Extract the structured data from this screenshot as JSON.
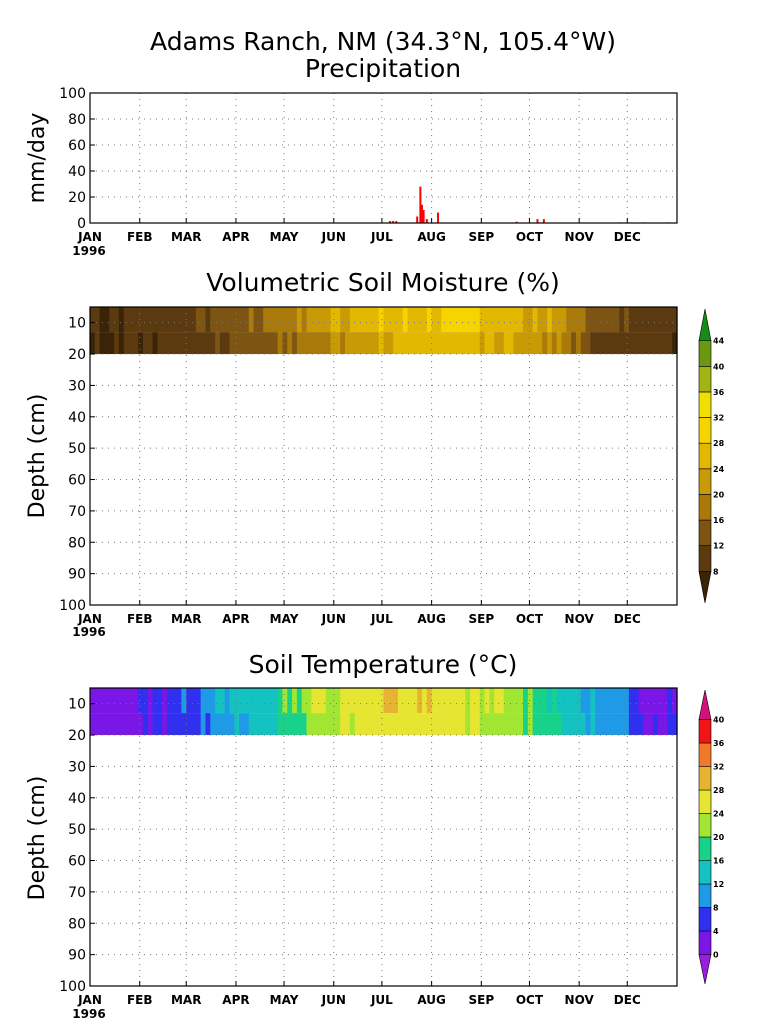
{
  "chart_data": [
    {
      "type": "bar",
      "title": "Adams Ranch, NM (34.3°N, 105.4°W)",
      "subtitle": "Precipitation",
      "xlabel": "",
      "ylabel": "mm/day",
      "year": "1996",
      "x_ticks": [
        "JAN",
        "FEB",
        "MAR",
        "APR",
        "MAY",
        "JUN",
        "JUL",
        "AUG",
        "SEP",
        "OCT",
        "NOV",
        "DEC"
      ],
      "y_ticks": [
        "0",
        "20",
        "40",
        "60",
        "80",
        "100"
      ],
      "ylim": [
        0,
        100
      ],
      "xlim_days": [
        0,
        366
      ],
      "grid": true,
      "color": "#ff0000",
      "x": [
        187,
        189,
        191,
        204,
        206,
        207,
        208,
        210,
        217,
        266,
        279,
        283,
        330,
        346,
        360
      ],
      "values": [
        1.5,
        1.5,
        1.5,
        5,
        28,
        14,
        10,
        3,
        8,
        1,
        3,
        3,
        0.5,
        0.5,
        0.5
      ]
    },
    {
      "type": "heatmap",
      "title": "Volumetric Soil Moisture (%)",
      "xlabel": "",
      "ylabel": "Depth (cm)",
      "year": "1996",
      "x_ticks": [
        "JAN",
        "FEB",
        "MAR",
        "APR",
        "MAY",
        "JUN",
        "JUL",
        "AUG",
        "SEP",
        "OCT",
        "NOV",
        "DEC"
      ],
      "y_ticks": [
        "10",
        "20",
        "30",
        "40",
        "50",
        "60",
        "70",
        "80",
        "90",
        "100"
      ],
      "ylim": [
        100,
        5
      ],
      "depth_range": [
        5,
        20
      ],
      "grid": true,
      "colorbar_labels": [
        "8",
        "12",
        "16",
        "20",
        "24",
        "28",
        "32",
        "36",
        "40",
        "44"
      ],
      "colorbar_colors": [
        "#3a2408",
        "#5c3a10",
        "#7d5412",
        "#a97a0a",
        "#c89a06",
        "#e2b800",
        "#f5d400",
        "#f0e000",
        "#a2b414",
        "#6a9810",
        "#168c16"
      ],
      "months": [
        "JAN",
        "FEB",
        "MAR",
        "APR",
        "MAY",
        "JUN",
        "JUL",
        "AUG",
        "SEP",
        "OCT",
        "NOV",
        "DEC"
      ],
      "values_upper": [
        9,
        11,
        13,
        16,
        21,
        26,
        28,
        29,
        27,
        22,
        13,
        10
      ],
      "values_lower": [
        8,
        9,
        11,
        14,
        18,
        22,
        25,
        26,
        24,
        20,
        11,
        9
      ]
    },
    {
      "type": "heatmap",
      "title": "Soil Temperature (°C)",
      "xlabel": "",
      "ylabel": "Depth (cm)",
      "year": "1996",
      "x_ticks": [
        "JAN",
        "FEB",
        "MAR",
        "APR",
        "MAY",
        "JUN",
        "JUL",
        "AUG",
        "SEP",
        "OCT",
        "NOV",
        "DEC"
      ],
      "y_ticks": [
        "10",
        "20",
        "30",
        "40",
        "50",
        "60",
        "70",
        "80",
        "90",
        "100"
      ],
      "ylim": [
        100,
        5
      ],
      "depth_range": [
        5,
        20
      ],
      "grid": true,
      "colorbar_labels": [
        "0",
        "4",
        "8",
        "12",
        "16",
        "20",
        "24",
        "28",
        "32",
        "36",
        "40"
      ],
      "colorbar_colors": [
        "#9a1ee0",
        "#7a16e6",
        "#3030f0",
        "#1e9ae6",
        "#14c2c2",
        "#18d28a",
        "#a0e632",
        "#e6e632",
        "#e6b432",
        "#f07a28",
        "#f01414",
        "#d2147a"
      ],
      "months": [
        "JAN",
        "FEB",
        "MAR",
        "APR",
        "MAY",
        "JUN",
        "JUL",
        "AUG",
        "SEP",
        "OCT",
        "NOV",
        "DEC"
      ],
      "values_upper": [
        2,
        5,
        10,
        14,
        23,
        26,
        28,
        26,
        22,
        17,
        9,
        3
      ],
      "values_lower": [
        2,
        4,
        9,
        13,
        21,
        25,
        26,
        25,
        22,
        17,
        10,
        4
      ]
    }
  ]
}
